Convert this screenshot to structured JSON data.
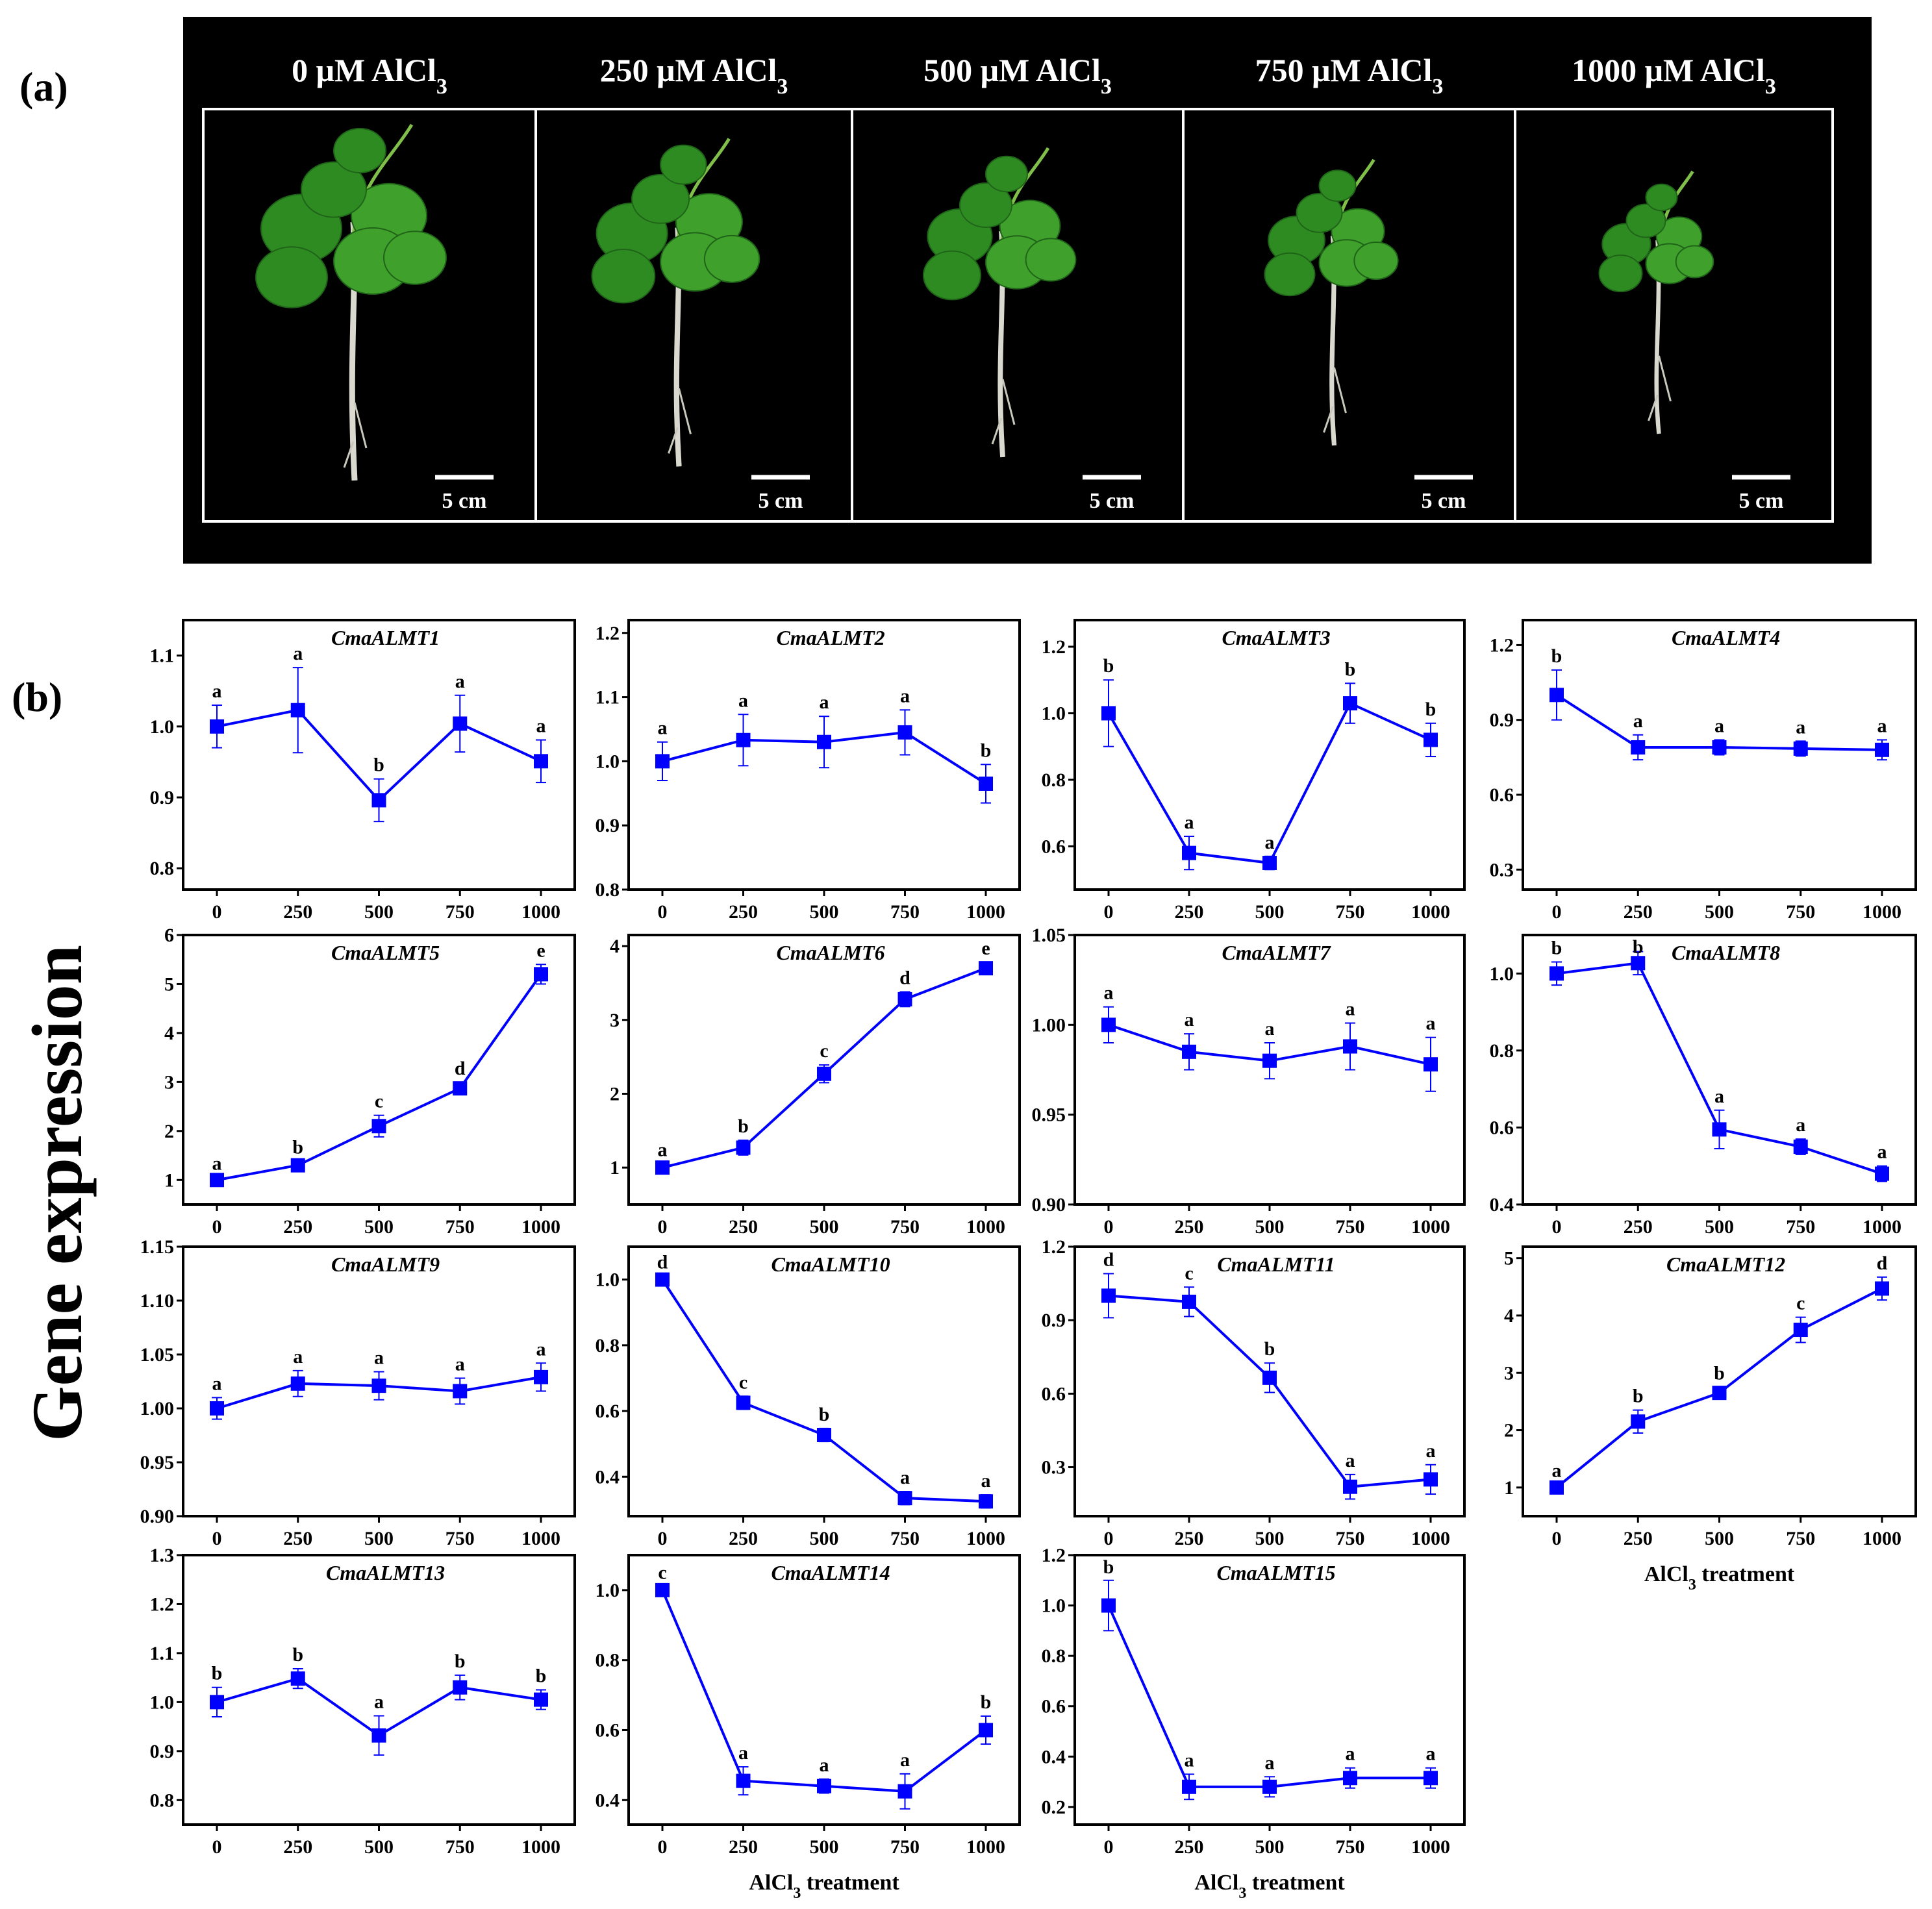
{
  "figure": {
    "panel_a_label": "(a)",
    "panel_b_label": "(b)",
    "y_axis_title": "Gene expression",
    "x_axis_title": "AlCl",
    "x_axis_title_sub": "3",
    "x_axis_title_end": " treatment",
    "series_color": "#0000ff"
  },
  "photos": [
    {
      "title": "0 μM  AlCl",
      "sub": "3",
      "scale": "5 cm",
      "plant_size": 1.0
    },
    {
      "title": "250 μM  AlCl",
      "sub": "3",
      "scale": "5 cm",
      "plant_size": 0.88
    },
    {
      "title": "500 μM  AlCl",
      "sub": "3",
      "scale": "5 cm",
      "plant_size": 0.8
    },
    {
      "title": "750 μM  AlCl",
      "sub": "3",
      "scale": "5 cm",
      "plant_size": 0.7
    },
    {
      "title": "1000 μM  AlCl",
      "sub": "3",
      "scale": "5 cm",
      "plant_size": 0.6
    }
  ],
  "chart_data": [
    {
      "type": "line",
      "title": "CmaALMT1",
      "x": [
        "0",
        "250",
        "500",
        "750",
        "1000"
      ],
      "values": [
        1.0,
        1.023,
        0.896,
        1.004,
        0.951
      ],
      "errors": [
        0.03,
        0.06,
        0.03,
        0.04,
        0.03
      ],
      "letters": [
        "a",
        "a",
        "b",
        "a",
        "a"
      ],
      "ylim": [
        0.77,
        1.15
      ],
      "yticks": [
        "0.8",
        "0.9",
        "1.0",
        "1.1"
      ],
      "xlabel": "",
      "ylabel": "Gene expression"
    },
    {
      "type": "line",
      "title": "CmaALMT2",
      "x": [
        "0",
        "250",
        "500",
        "750",
        "1000"
      ],
      "values": [
        1.0,
        1.033,
        1.03,
        1.045,
        0.965
      ],
      "errors": [
        0.03,
        0.04,
        0.04,
        0.035,
        0.03
      ],
      "letters": [
        "a",
        "a",
        "a",
        "a",
        "b"
      ],
      "ylim": [
        0.8,
        1.22
      ],
      "yticks": [
        "0.8",
        "0.9",
        "1.0",
        "1.1",
        "1.2"
      ],
      "xlabel": "",
      "ylabel": ""
    },
    {
      "type": "line",
      "title": "CmaALMT3",
      "x": [
        "0",
        "250",
        "500",
        "750",
        "1000"
      ],
      "values": [
        1.0,
        0.58,
        0.55,
        1.03,
        0.92
      ],
      "errors": [
        0.1,
        0.05,
        0.02,
        0.06,
        0.05
      ],
      "letters": [
        "b",
        "a",
        "a",
        "b",
        "b"
      ],
      "ylim": [
        0.47,
        1.28
      ],
      "yticks": [
        "0.6",
        "0.8",
        "1.0",
        "1.2"
      ],
      "xlabel": "",
      "ylabel": ""
    },
    {
      "type": "line",
      "title": "CmaALMT4",
      "x": [
        "0",
        "250",
        "500",
        "750",
        "1000"
      ],
      "values": [
        1.0,
        0.79,
        0.79,
        0.785,
        0.78
      ],
      "errors": [
        0.1,
        0.05,
        0.03,
        0.03,
        0.04
      ],
      "letters": [
        "b",
        "a",
        "a",
        "a",
        "a"
      ],
      "ylim": [
        0.22,
        1.3
      ],
      "yticks": [
        "0.3",
        "0.6",
        "0.9",
        "1.2"
      ],
      "xlabel": "",
      "ylabel": ""
    },
    {
      "type": "line",
      "title": "CmaALMT5",
      "x": [
        "0",
        "250",
        "500",
        "750",
        "1000"
      ],
      "values": [
        1.0,
        1.3,
        2.1,
        2.87,
        5.2
      ],
      "errors": [
        0.05,
        0.08,
        0.22,
        0.12,
        0.2
      ],
      "letters": [
        "a",
        "b",
        "c",
        "d",
        "e"
      ],
      "ylim": [
        0.5,
        6.0
      ],
      "yticks": [
        "1",
        "2",
        "3",
        "4",
        "5",
        "6"
      ],
      "xlabel": "",
      "ylabel": ""
    },
    {
      "type": "line",
      "title": "CmaALMT6",
      "x": [
        "0",
        "250",
        "500",
        "750",
        "1000"
      ],
      "values": [
        1.0,
        1.27,
        2.27,
        3.28,
        3.7
      ],
      "errors": [
        0.05,
        0.1,
        0.12,
        0.1,
        0.08
      ],
      "letters": [
        "a",
        "b",
        "c",
        "d",
        "e"
      ],
      "ylim": [
        0.5,
        4.15
      ],
      "yticks": [
        "1",
        "2",
        "3",
        "4"
      ],
      "xlabel": "",
      "ylabel": ""
    },
    {
      "type": "line",
      "title": "CmaALMT7",
      "x": [
        "0",
        "250",
        "500",
        "750",
        "1000"
      ],
      "values": [
        1.0,
        0.985,
        0.98,
        0.988,
        0.978
      ],
      "errors": [
        0.01,
        0.01,
        0.01,
        0.013,
        0.015
      ],
      "letters": [
        "a",
        "a",
        "a",
        "a",
        "a"
      ],
      "ylim": [
        0.9,
        1.05
      ],
      "yticks": [
        "0.90",
        "0.95",
        "1.00",
        "1.05"
      ],
      "xlabel": "",
      "ylabel": ""
    },
    {
      "type": "line",
      "title": "CmaALMT8",
      "x": [
        "0",
        "250",
        "500",
        "750",
        "1000"
      ],
      "values": [
        1.0,
        1.027,
        0.595,
        0.55,
        0.48
      ],
      "errors": [
        0.03,
        0.03,
        0.05,
        0.02,
        0.02
      ],
      "letters": [
        "b",
        "b",
        "a",
        "a",
        "a"
      ],
      "ylim": [
        0.4,
        1.1
      ],
      "yticks": [
        "0.4",
        "0.6",
        "0.8",
        "1.0"
      ],
      "xlabel": "",
      "ylabel": ""
    },
    {
      "type": "line",
      "title": "CmaALMT9",
      "x": [
        "0",
        "250",
        "500",
        "750",
        "1000"
      ],
      "values": [
        1.0,
        1.023,
        1.021,
        1.016,
        1.029
      ],
      "errors": [
        0.01,
        0.012,
        0.013,
        0.012,
        0.013
      ],
      "letters": [
        "a",
        "a",
        "a",
        "a",
        "a"
      ],
      "ylim": [
        0.9,
        1.15
      ],
      "yticks": [
        "0.90",
        "0.95",
        "1.00",
        "1.05",
        "1.10",
        "1.15"
      ],
      "xlabel": "",
      "ylabel": ""
    },
    {
      "type": "line",
      "title": "CmaALMT10",
      "x": [
        "0",
        "250",
        "500",
        "750",
        "1000"
      ],
      "values": [
        1.0,
        0.625,
        0.527,
        0.335,
        0.325
      ],
      "errors": [
        0.01,
        0.02,
        0.02,
        0.02,
        0.02
      ],
      "letters": [
        "d",
        "c",
        "b",
        "a",
        "a"
      ],
      "ylim": [
        0.28,
        1.1
      ],
      "yticks": [
        "0.4",
        "0.6",
        "0.8",
        "1.0"
      ],
      "xlabel": "",
      "ylabel": ""
    },
    {
      "type": "line",
      "title": "CmaALMT11",
      "x": [
        "0",
        "250",
        "500",
        "750",
        "1000"
      ],
      "values": [
        1.0,
        0.975,
        0.665,
        0.22,
        0.25
      ],
      "errors": [
        0.09,
        0.06,
        0.06,
        0.05,
        0.06
      ],
      "letters": [
        "d",
        "c",
        "b",
        "a",
        "a"
      ],
      "ylim": [
        0.1,
        1.2
      ],
      "yticks": [
        "0.3",
        "0.6",
        "0.9",
        "1.2"
      ],
      "xlabel": "",
      "ylabel": ""
    },
    {
      "type": "line",
      "title": "CmaALMT12",
      "x": [
        "0",
        "250",
        "500",
        "750",
        "1000"
      ],
      "values": [
        1.0,
        2.15,
        2.65,
        3.75,
        4.47
      ],
      "errors": [
        0.05,
        0.2,
        0.1,
        0.22,
        0.2
      ],
      "letters": [
        "a",
        "b",
        "b",
        "c",
        "d"
      ],
      "ylim": [
        0.5,
        5.2
      ],
      "yticks": [
        "1",
        "2",
        "3",
        "4",
        "5"
      ],
      "xlabel": "AlCl3 treatment",
      "ylabel": ""
    },
    {
      "type": "line",
      "title": "CmaALMT13",
      "x": [
        "0",
        "250",
        "500",
        "750",
        "1000"
      ],
      "values": [
        1.0,
        1.048,
        0.932,
        1.03,
        1.005
      ],
      "errors": [
        0.03,
        0.02,
        0.04,
        0.025,
        0.02
      ],
      "letters": [
        "b",
        "b",
        "a",
        "b",
        "b"
      ],
      "ylim": [
        0.75,
        1.3
      ],
      "yticks": [
        "0.8",
        "0.9",
        "1.0",
        "1.1",
        "1.2",
        "1.3"
      ],
      "xlabel": "",
      "ylabel": ""
    },
    {
      "type": "line",
      "title": "CmaALMT14",
      "x": [
        "0",
        "250",
        "500",
        "750",
        "1000"
      ],
      "values": [
        1.0,
        0.455,
        0.44,
        0.425,
        0.6
      ],
      "errors": [
        0.01,
        0.04,
        0.02,
        0.05,
        0.04
      ],
      "letters": [
        "c",
        "a",
        "a",
        "a",
        "b"
      ],
      "ylim": [
        0.33,
        1.1
      ],
      "yticks": [
        "0.4",
        "0.6",
        "0.8",
        "1.0"
      ],
      "xlabel": "AlCl3 treatment",
      "ylabel": ""
    },
    {
      "type": "line",
      "title": "CmaALMT15",
      "x": [
        "0",
        "250",
        "500",
        "750",
        "1000"
      ],
      "values": [
        1.0,
        0.28,
        0.28,
        0.315,
        0.315
      ],
      "errors": [
        0.1,
        0.05,
        0.04,
        0.04,
        0.04
      ],
      "letters": [
        "b",
        "a",
        "a",
        "a",
        "a"
      ],
      "ylim": [
        0.13,
        1.2
      ],
      "yticks": [
        "0.2",
        "0.4",
        "0.6",
        "0.8",
        "1.0",
        "1.2"
      ],
      "xlabel": "AlCl3 treatment",
      "ylabel": ""
    }
  ]
}
